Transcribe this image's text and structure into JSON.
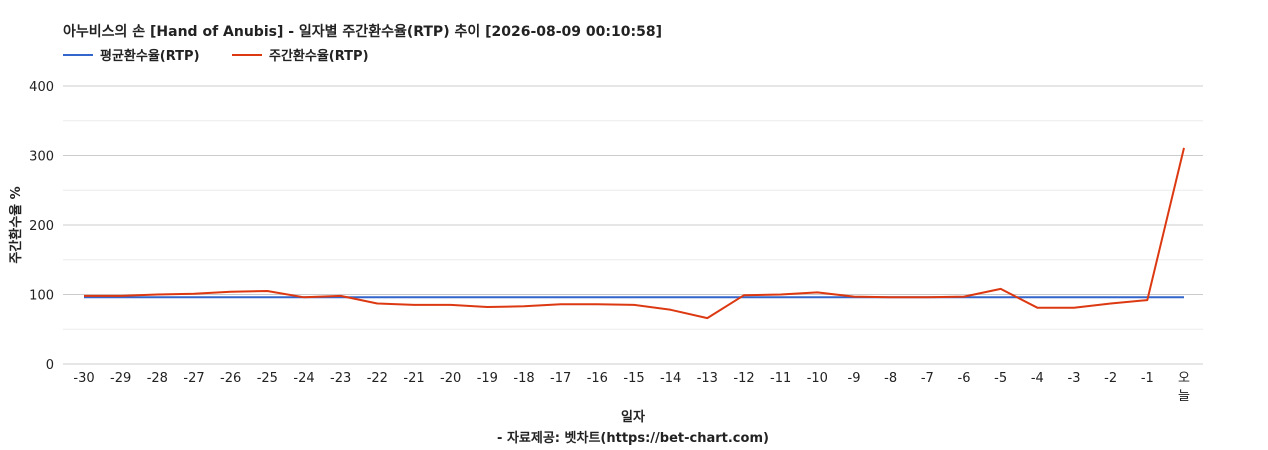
{
  "chart_data": {
    "type": "line",
    "title": "아누비스의 손 [Hand of Anubis] - 일자별 주간환수율(RTP) 추이 [2026-08-09 00:10:58]",
    "xlabel": "일자",
    "ylabel": "주간환수율 %",
    "footer": "- 자료제공: 벳차트(https://bet-chart.com)",
    "categories": [
      "-30",
      "-29",
      "-28",
      "-27",
      "-26",
      "-25",
      "-24",
      "-23",
      "-22",
      "-21",
      "-20",
      "-19",
      "-18",
      "-17",
      "-16",
      "-15",
      "-14",
      "-13",
      "-12",
      "-11",
      "-10",
      "-9",
      "-8",
      "-7",
      "-6",
      "-5",
      "-4",
      "-3",
      "-2",
      "-1",
      "오늘"
    ],
    "yticks": [
      0,
      100,
      200,
      300,
      400
    ],
    "ylim": [
      0,
      400
    ],
    "grid": true,
    "legend_position": "top-left",
    "series": [
      {
        "name": "평균환수율(RTP)",
        "color": "#3366cc",
        "values": [
          96,
          96,
          96,
          96,
          96,
          96,
          96,
          96,
          96,
          96,
          96,
          96,
          96,
          96,
          96,
          96,
          96,
          96,
          96,
          96,
          96,
          96,
          96,
          96,
          96,
          96,
          96,
          96,
          96,
          96,
          96
        ]
      },
      {
        "name": "주간환수율(RTP)",
        "color": "#dc3912",
        "values": [
          98,
          98,
          100,
          101,
          104,
          105,
          96,
          98,
          87,
          85,
          85,
          82,
          83,
          86,
          86,
          85,
          78,
          66,
          99,
          100,
          103,
          97,
          96,
          96,
          97,
          108,
          81,
          81,
          87,
          92,
          311
        ]
      }
    ]
  }
}
